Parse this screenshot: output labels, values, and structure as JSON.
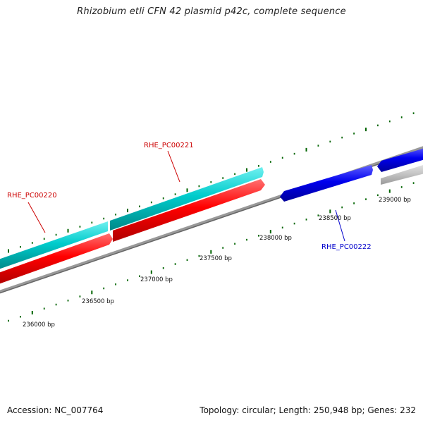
{
  "title": "Rhizobium etli CFN 42 plasmid p42c, complete sequence",
  "footer": {
    "accession": "Accession: NC_007764",
    "summary": "Topology: circular; Length: 250,948 bp; Genes: 232"
  },
  "colors": {
    "forward_gene": "#ff0000",
    "forward_gene_alt": "#00c8c8",
    "reverse_gene": "#0000ee",
    "other_gene": "#c0c0c0",
    "backbone": "#888888",
    "ticks": "#006400",
    "forward_label": "#cc0000",
    "reverse_label": "#0000cc"
  },
  "ticks": [
    {
      "label": "236000 bp"
    },
    {
      "label": "236500 bp"
    },
    {
      "label": "237000 bp"
    },
    {
      "label": "237500 bp"
    },
    {
      "label": "238000 bp"
    },
    {
      "label": "238500 bp"
    },
    {
      "label": "239000 bp"
    }
  ],
  "gene_labels": [
    {
      "name": "RHE_PC00220"
    },
    {
      "name": "RHE_PC00221"
    },
    {
      "name": "RHE_PC00222"
    }
  ]
}
